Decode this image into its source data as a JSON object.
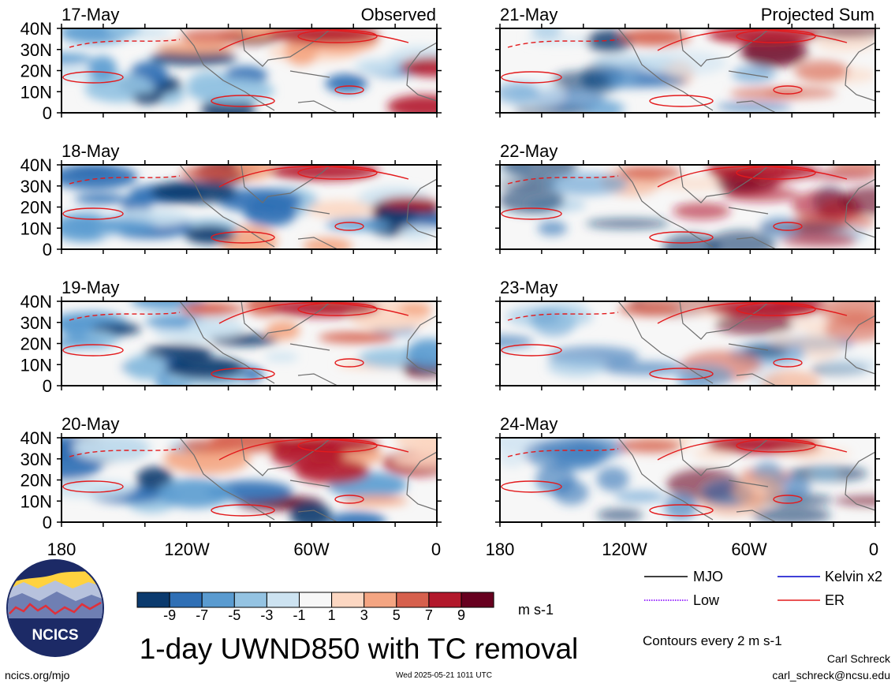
{
  "panels_left": [
    {
      "date": "17-May",
      "tag": "Observed"
    },
    {
      "date": "18-May",
      "tag": ""
    },
    {
      "date": "19-May",
      "tag": ""
    },
    {
      "date": "20-May",
      "tag": ""
    }
  ],
  "panels_right": [
    {
      "date": "21-May",
      "tag": "Projected Sum"
    },
    {
      "date": "22-May",
      "tag": ""
    },
    {
      "date": "23-May",
      "tag": ""
    },
    {
      "date": "24-May",
      "tag": ""
    }
  ],
  "lat_labels": [
    "40N",
    "30N",
    "20N",
    "10N",
    "0"
  ],
  "lon_labels": [
    "180",
    "120W",
    "60W",
    "0"
  ],
  "colorbar": {
    "ticks": [
      "-9",
      "-7",
      "-5",
      "-3",
      "-1",
      "1",
      "3",
      "5",
      "7",
      "9"
    ],
    "unit": "m s-1",
    "colors": [
      "#0b3a6e",
      "#2f6fb5",
      "#5a9bd0",
      "#94c3e2",
      "#cde3f1",
      "#f7f7f7",
      "#fcd7c2",
      "#f4a582",
      "#d6604d",
      "#b2182b",
      "#67001f"
    ]
  },
  "title": "1-day UWND850 with TC removal",
  "legend": {
    "items": [
      {
        "label": "MJO",
        "color": "#000000",
        "style": "solid"
      },
      {
        "label": "Kelvin x2",
        "color": "#0000cc",
        "style": "solid"
      },
      {
        "label": "Low",
        "color": "#9b30ff",
        "style": "dotted"
      },
      {
        "label": "ER",
        "color": "#e31a1c",
        "style": "solid"
      }
    ],
    "note": "Contours every 2 m s-1"
  },
  "footer": {
    "url": "ncics.org/mjo",
    "timestamp": "Wed 2025-05-21 1011 UTC",
    "author": "Carl Schreck",
    "email": "carl_schreck@ncsu.edu"
  },
  "logo": {
    "text": "NCICS"
  }
}
